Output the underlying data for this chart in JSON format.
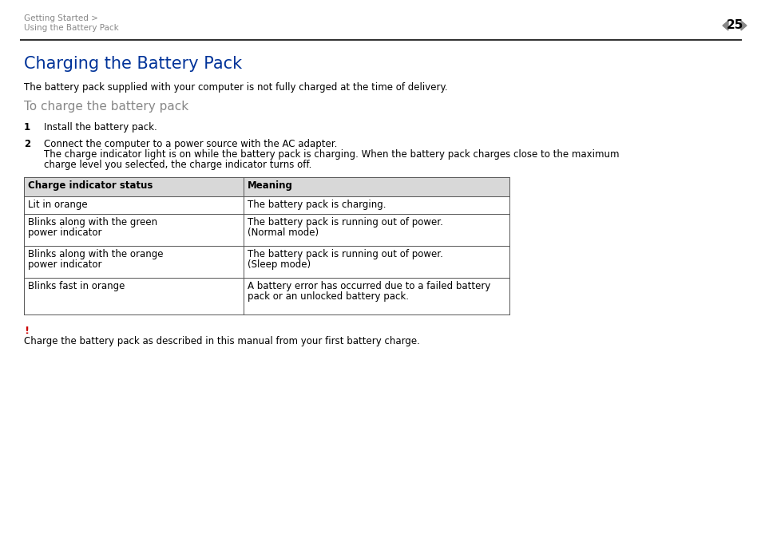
{
  "page_num": "25",
  "breadcrumb_line1": "Getting Started >",
  "breadcrumb_line2": "Using the Battery Pack",
  "title": "Charging the Battery Pack",
  "subtitle": "The battery pack supplied with your computer is not fully charged at the time of delivery.",
  "section_heading": "To charge the battery pack",
  "step1_num": "1",
  "step1_text": "Install the battery pack.",
  "step2_num": "2",
  "step2_line1": "Connect the computer to a power source with the AC adapter.",
  "step2_line2": "The charge indicator light is on while the battery pack is charging. When the battery pack charges close to the maximum",
  "step2_line3": "charge level you selected, the charge indicator turns off.",
  "table_headers": [
    "Charge indicator status",
    "Meaning"
  ],
  "table_rows": [
    [
      "Lit in orange",
      "The battery pack is charging."
    ],
    [
      "Blinks along with the green\npower indicator",
      "The battery pack is running out of power.\n(Normal mode)"
    ],
    [
      "Blinks along with the orange\npower indicator",
      "The battery pack is running out of power.\n(Sleep mode)"
    ],
    [
      "Blinks fast in orange",
      "A battery error has occurred due to a failed battery\npack or an unlocked battery pack."
    ]
  ],
  "note_symbol": "!",
  "note_text": "Charge the battery pack as described in this manual from your first battery charge.",
  "title_color": "#003399",
  "section_color": "#888888",
  "breadcrumb_color": "#888888",
  "note_symbol_color": "#cc0000",
  "bg_color": "#ffffff",
  "header_bg_color": "#d8d8d8",
  "table_border_color": "#555555",
  "body_font_size": 8.5,
  "title_font_size": 15,
  "section_font_size": 11
}
